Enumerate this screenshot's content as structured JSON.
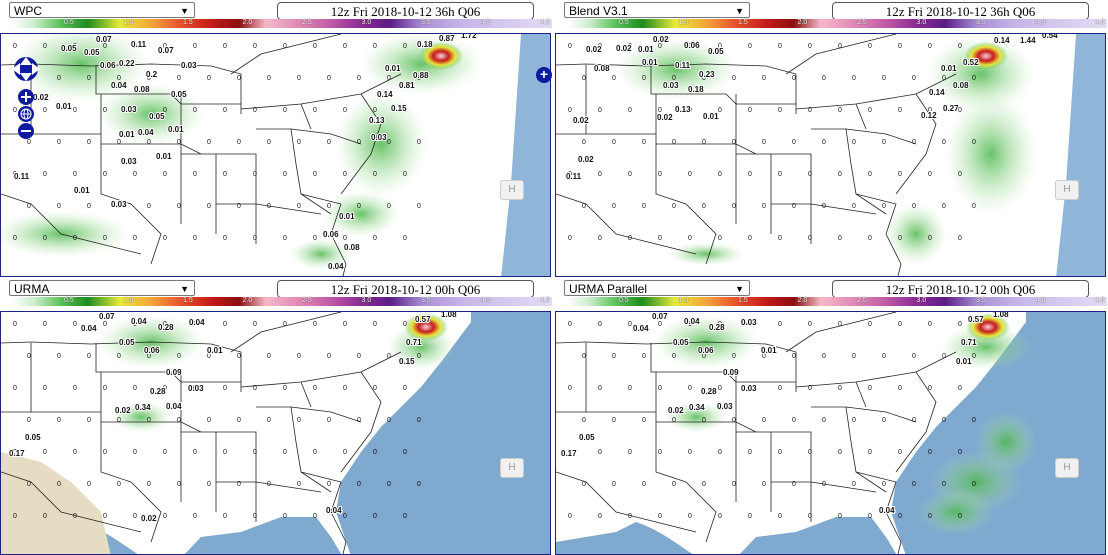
{
  "colorbar": {
    "ticks": [
      "0.5",
      "1.0",
      "1.5",
      "2.0",
      "2.5",
      "3.0",
      "3.5",
      "4.0",
      "4.5"
    ]
  },
  "panels": [
    {
      "id": "wpc",
      "model": "WPC",
      "time": "12z Fri 2018-10-12 36h Q06",
      "labels": [
        [
          "0.07",
          95,
          37
        ],
        [
          "0.05",
          60,
          46
        ],
        [
          "0.11",
          130,
          42
        ],
        [
          "0.07",
          157,
          48
        ],
        [
          "0.06",
          99,
          63
        ],
        [
          "0.22",
          118,
          61
        ],
        [
          "0.03",
          180,
          63
        ],
        [
          "0.05",
          83,
          50
        ],
        [
          "0.2",
          145,
          72
        ],
        [
          "0.04",
          110,
          83
        ],
        [
          "0.08",
          133,
          87
        ],
        [
          "0.05",
          170,
          92
        ],
        [
          "0.02",
          32,
          95
        ],
        [
          "0.01",
          55,
          104
        ],
        [
          "0.03",
          120,
          107
        ],
        [
          "0.05",
          148,
          114
        ],
        [
          "0.01",
          167,
          127
        ],
        [
          "0.01",
          118,
          132
        ],
        [
          "0.04",
          137,
          130
        ],
        [
          "0.03",
          120,
          159
        ],
        [
          "0.01",
          155,
          154
        ],
        [
          "0.01",
          73,
          188
        ],
        [
          "0.03",
          110,
          202
        ],
        [
          "0.11",
          13,
          174
        ],
        [
          "0.18",
          416,
          42
        ],
        [
          "0.87",
          438,
          36
        ],
        [
          "1.72",
          460,
          33
        ],
        [
          "0.88",
          412,
          73
        ],
        [
          "0.01",
          384,
          66
        ],
        [
          "0.81",
          398,
          83
        ],
        [
          "0.14",
          376,
          92
        ],
        [
          "0.15",
          390,
          106
        ],
        [
          "0.13",
          368,
          118
        ],
        [
          "0.03",
          370,
          135
        ],
        [
          "0.01",
          338,
          214
        ],
        [
          "0.06",
          322,
          232
        ],
        [
          "0.08",
          343,
          245
        ],
        [
          "0.04",
          327,
          264
        ]
      ]
    },
    {
      "id": "blend",
      "model": "Blend V3.1",
      "time": "12z Fri 2018-10-12 36h Q06",
      "labels": [
        [
          "0.02",
          652,
          37
        ],
        [
          "0.02",
          585,
          47
        ],
        [
          "0.02",
          615,
          46
        ],
        [
          "0.06",
          683,
          43
        ],
        [
          "0.05",
          707,
          49
        ],
        [
          "0.01",
          637,
          47
        ],
        [
          "0.08",
          593,
          66
        ],
        [
          "0.11",
          674,
          63
        ],
        [
          "0.23",
          698,
          72
        ],
        [
          "0.03",
          662,
          83
        ],
        [
          "0.18",
          687,
          87
        ],
        [
          "0.01",
          641,
          60
        ],
        [
          "0.13",
          674,
          107
        ],
        [
          "0.02",
          656,
          115
        ],
        [
          "0.01",
          702,
          114
        ],
        [
          "0.02",
          572,
          118
        ],
        [
          "0.02",
          577,
          157
        ],
        [
          "0.14",
          993,
          38
        ],
        [
          "1.44",
          1019,
          38
        ],
        [
          "0.54",
          1041,
          33
        ],
        [
          "0.52",
          962,
          60
        ],
        [
          "0.01",
          940,
          66
        ],
        [
          "0.08",
          952,
          83
        ],
        [
          "0.14",
          928,
          90
        ],
        [
          "0.27",
          942,
          106
        ],
        [
          "0.12",
          920,
          113
        ],
        [
          "0.11",
          565,
          174
        ]
      ]
    },
    {
      "id": "urma",
      "model": "URMA",
      "time": "12z Fri 2018-10-12 00h Q06",
      "labels": [
        [
          "0.07",
          98,
          314
        ],
        [
          "0.04",
          80,
          326
        ],
        [
          "0.04",
          130,
          319
        ],
        [
          "0.28",
          157,
          325
        ],
        [
          "0.04",
          188,
          320
        ],
        [
          "0.05",
          118,
          340
        ],
        [
          "0.06",
          143,
          348
        ],
        [
          "0.01",
          206,
          348
        ],
        [
          "0.09",
          165,
          370
        ],
        [
          "0.28",
          149,
          389
        ],
        [
          "0.03",
          187,
          386
        ],
        [
          "0.02",
          114,
          408
        ],
        [
          "0.34",
          134,
          405
        ],
        [
          "0.04",
          165,
          404
        ],
        [
          "0.05",
          24,
          435
        ],
        [
          "0.17",
          8,
          451
        ],
        [
          "0.57",
          414,
          317
        ],
        [
          "1.08",
          440,
          312
        ],
        [
          "0.71",
          405,
          340
        ],
        [
          "0.15",
          398,
          359
        ],
        [
          "0.02",
          140,
          516
        ],
        [
          "0.04",
          325,
          508
        ]
      ]
    },
    {
      "id": "urma-par",
      "model": "URMA Parallel",
      "time": "12z Fri 2018-10-12 00h Q06",
      "labels": [
        [
          "0.07",
          651,
          314
        ],
        [
          "0.04",
          632,
          326
        ],
        [
          "0.04",
          683,
          319
        ],
        [
          "0.28",
          708,
          325
        ],
        [
          "0.03",
          740,
          320
        ],
        [
          "0.05",
          672,
          340
        ],
        [
          "0.06",
          697,
          348
        ],
        [
          "0.01",
          760,
          348
        ],
        [
          "0.09",
          722,
          370
        ],
        [
          "0.28",
          700,
          389
        ],
        [
          "0.03",
          740,
          386
        ],
        [
          "0.02",
          667,
          408
        ],
        [
          "0.34",
          688,
          405
        ],
        [
          "0.03",
          716,
          404
        ],
        [
          "0.05",
          578,
          435
        ],
        [
          "0.17",
          560,
          451
        ],
        [
          "0.57",
          967,
          317
        ],
        [
          "1.08",
          992,
          312
        ],
        [
          "0.71",
          960,
          340
        ],
        [
          "0.01",
          955,
          359
        ],
        [
          "0.04",
          878,
          508
        ]
      ]
    }
  ],
  "controls": {
    "h_label": "H"
  }
}
